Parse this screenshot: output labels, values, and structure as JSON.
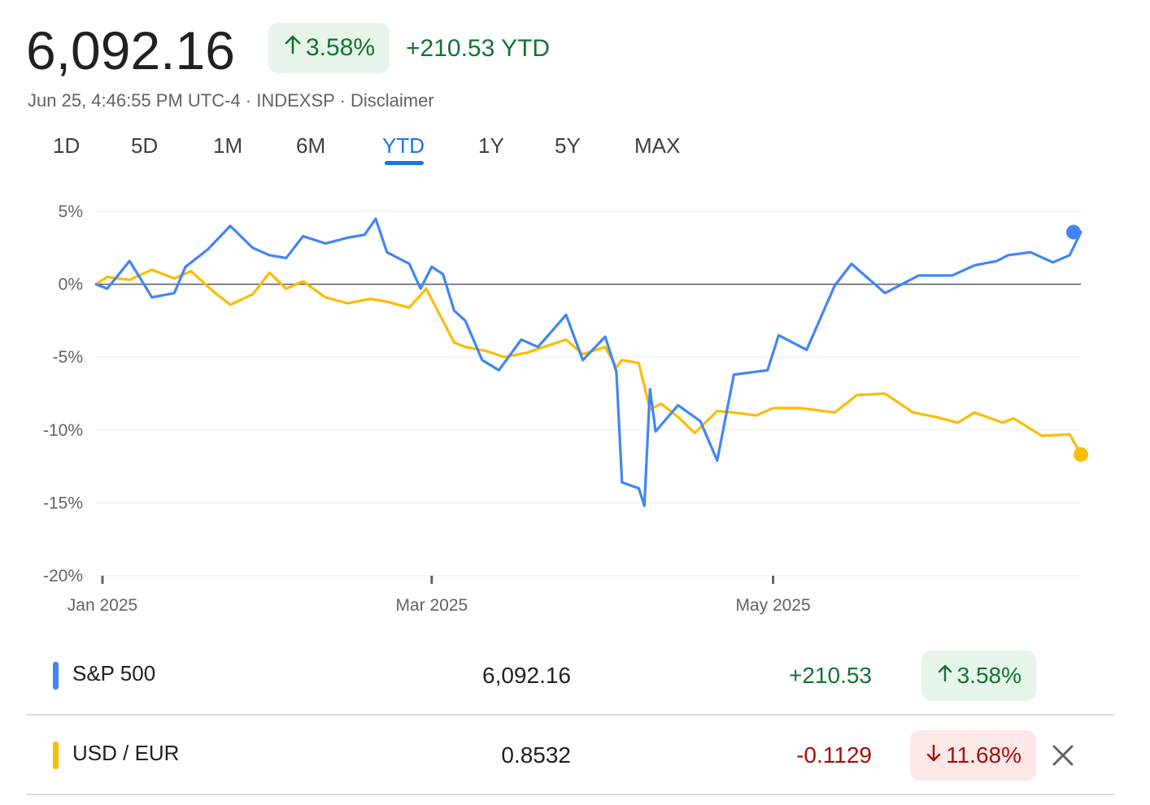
{
  "header": {
    "price": "6,092.16",
    "change_pct": "3.58%",
    "change_abs": "+210.53 YTD",
    "meta": "Jun 25, 4:46:55 PM UTC-4 · INDEXSP · Disclaimer",
    "up_icon": "arrow-up-icon"
  },
  "ranges": {
    "items": [
      "1D",
      "5D",
      "1M",
      "6M",
      "YTD",
      "1Y",
      "5Y",
      "MAX"
    ],
    "selected": "YTD"
  },
  "chart_data": {
    "type": "line",
    "ylabel": "",
    "xlabel": "",
    "ylim": [
      -20,
      5
    ],
    "yticks": [
      "5%",
      "0%",
      "-5%",
      "-10%",
      "-15%",
      "-20%"
    ],
    "ytick_values": [
      5,
      0,
      -5,
      -10,
      -15,
      -20
    ],
    "x_tick_labels": [
      "Jan 2025",
      "Mar 2025",
      "May 2025"
    ],
    "x_tick_dates": [
      "2025-01-01",
      "2025-03-01",
      "2025-05-01"
    ],
    "x_range": [
      "2024-12-31",
      "2025-06-25"
    ],
    "baseline": 0,
    "series": [
      {
        "name": "S&P 500",
        "color": "#4285f4",
        "x": [
          "2024-12-31",
          "2025-01-02",
          "2025-01-06",
          "2025-01-10",
          "2025-01-14",
          "2025-01-16",
          "2025-01-20",
          "2025-01-24",
          "2025-01-28",
          "2025-01-31",
          "2025-02-03",
          "2025-02-06",
          "2025-02-10",
          "2025-02-14",
          "2025-02-17",
          "2025-02-19",
          "2025-02-21",
          "2025-02-25",
          "2025-02-27",
          "2025-03-01",
          "2025-03-03",
          "2025-03-05",
          "2025-03-07",
          "2025-03-10",
          "2025-03-13",
          "2025-03-17",
          "2025-03-20",
          "2025-03-25",
          "2025-03-28",
          "2025-04-01",
          "2025-04-03",
          "2025-04-04",
          "2025-04-07",
          "2025-04-08",
          "2025-04-09",
          "2025-04-10",
          "2025-04-14",
          "2025-04-18",
          "2025-04-21",
          "2025-04-24",
          "2025-04-30",
          "2025-05-02",
          "2025-05-07",
          "2025-05-12",
          "2025-05-15",
          "2025-05-21",
          "2025-05-27",
          "2025-06-02",
          "2025-06-06",
          "2025-06-10",
          "2025-06-12",
          "2025-06-16",
          "2025-06-20",
          "2025-06-23",
          "2025-06-25"
        ],
        "values": [
          0,
          -0.3,
          1.6,
          -0.9,
          -0.6,
          1.2,
          2.4,
          4.0,
          2.5,
          2.0,
          1.8,
          3.3,
          2.8,
          3.2,
          3.4,
          4.5,
          2.2,
          1.4,
          -0.3,
          1.2,
          0.7,
          -1.8,
          -2.5,
          -5.2,
          -5.9,
          -3.8,
          -4.3,
          -2.1,
          -5.2,
          -3.6,
          -6.0,
          -13.6,
          -14.0,
          -15.2,
          -7.2,
          -10.1,
          -8.3,
          -9.4,
          -12.1,
          -6.2,
          -5.9,
          -3.5,
          -4.5,
          -0.1,
          1.4,
          -0.6,
          0.6,
          0.6,
          1.3,
          1.6,
          2.0,
          2.2,
          1.5,
          2.0,
          3.58
        ]
      },
      {
        "name": "USD / EUR",
        "color": "#fbbc04",
        "x": [
          "2024-12-31",
          "2025-01-02",
          "2025-01-06",
          "2025-01-10",
          "2025-01-14",
          "2025-01-17",
          "2025-01-21",
          "2025-01-24",
          "2025-01-28",
          "2025-01-31",
          "2025-02-03",
          "2025-02-06",
          "2025-02-10",
          "2025-02-14",
          "2025-02-18",
          "2025-02-21",
          "2025-02-25",
          "2025-02-28",
          "2025-03-03",
          "2025-03-05",
          "2025-03-07",
          "2025-03-11",
          "2025-03-14",
          "2025-03-18",
          "2025-03-21",
          "2025-03-25",
          "2025-03-28",
          "2025-04-01",
          "2025-04-03",
          "2025-04-04",
          "2025-04-07",
          "2025-04-09",
          "2025-04-11",
          "2025-04-14",
          "2025-04-17",
          "2025-04-21",
          "2025-04-24",
          "2025-04-28",
          "2025-05-01",
          "2025-05-06",
          "2025-05-12",
          "2025-05-16",
          "2025-05-21",
          "2025-05-26",
          "2025-05-30",
          "2025-06-03",
          "2025-06-06",
          "2025-06-11",
          "2025-06-13",
          "2025-06-18",
          "2025-06-23",
          "2025-06-25"
        ],
        "values": [
          0,
          0.5,
          0.3,
          1.0,
          0.4,
          0.9,
          -0.5,
          -1.4,
          -0.7,
          0.8,
          -0.3,
          0.2,
          -0.9,
          -1.3,
          -1.0,
          -1.2,
          -1.6,
          -0.3,
          -2.5,
          -4.0,
          -4.3,
          -4.6,
          -5.0,
          -4.7,
          -4.3,
          -3.8,
          -4.8,
          -4.3,
          -5.7,
          -5.2,
          -5.4,
          -8.6,
          -8.2,
          -9.1,
          -10.2,
          -8.7,
          -8.8,
          -9.0,
          -8.5,
          -8.5,
          -8.8,
          -7.6,
          -7.5,
          -8.8,
          -9.1,
          -9.5,
          -8.8,
          -9.5,
          -9.2,
          -10.4,
          -10.3,
          -11.68
        ]
      }
    ]
  },
  "comparisons": [
    {
      "name": "S&P 500",
      "color": "#4285f4",
      "value": "6,092.16",
      "abs_change": "+210.53",
      "pct_change": "3.58%",
      "direction": "up",
      "icon": "arrow-up-icon",
      "removable": false
    },
    {
      "name": "USD / EUR",
      "color": "#fbbc04",
      "value": "0.8532",
      "abs_change": "-0.1129",
      "pct_change": "11.68%",
      "direction": "down",
      "icon": "arrow-down-icon",
      "removable": true,
      "remove_icon": "close-icon"
    }
  ]
}
